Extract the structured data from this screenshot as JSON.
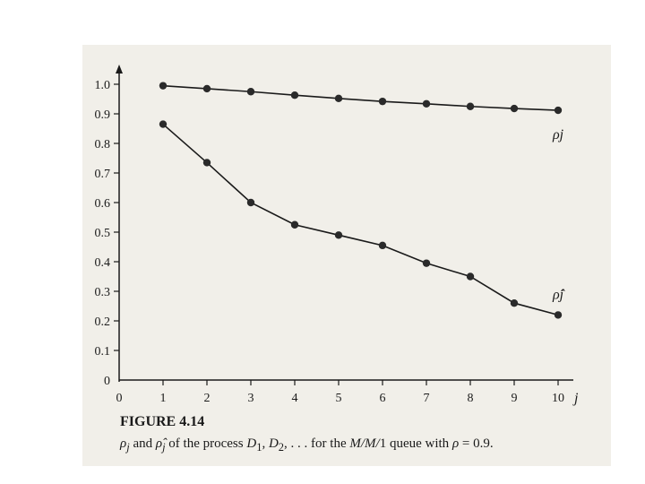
{
  "chart_data": {
    "type": "line",
    "title": "",
    "xlabel": "j",
    "ylabel": "",
    "xlim": [
      0,
      10
    ],
    "ylim": [
      0,
      1.0
    ],
    "x": [
      1,
      2,
      3,
      4,
      5,
      6,
      7,
      8,
      9,
      10
    ],
    "x_ticks": [
      "0",
      "1",
      "2",
      "3",
      "4",
      "5",
      "6",
      "7",
      "8",
      "9",
      "10"
    ],
    "y_ticks": [
      "0",
      "0.1",
      "0.2",
      "0.3",
      "0.4",
      "0.5",
      "0.6",
      "0.7",
      "0.8",
      "0.9",
      "1.0"
    ],
    "grid": false,
    "legend": "none; series labeled directly at the right end of each line",
    "series": [
      {
        "name": "ρj",
        "values": [
          0.995,
          0.985,
          0.975,
          0.963,
          0.952,
          0.942,
          0.934,
          0.925,
          0.918,
          0.912
        ]
      },
      {
        "name": "ρ̂j",
        "values": [
          0.865,
          0.735,
          0.6,
          0.525,
          0.49,
          0.455,
          0.395,
          0.35,
          0.26,
          0.22
        ]
      }
    ]
  },
  "figure": {
    "title": "FIGURE 4.14",
    "caption": {
      "rho": "ρ",
      "sub_j": "j",
      "and": " and ",
      "rho_hat": "ρ̂",
      "text1": " of the process ",
      "D": "D",
      "sub1": "1",
      "comma": ", ",
      "sub2": "2",
      "text2": ", . . . for the ",
      "queue_name": "M/M/",
      "queue_num": "1",
      "text3": " queue with ",
      "equals": " = 0.9."
    }
  },
  "colors": {
    "page": "#f1efe9",
    "ink": "#1a1a1a"
  }
}
